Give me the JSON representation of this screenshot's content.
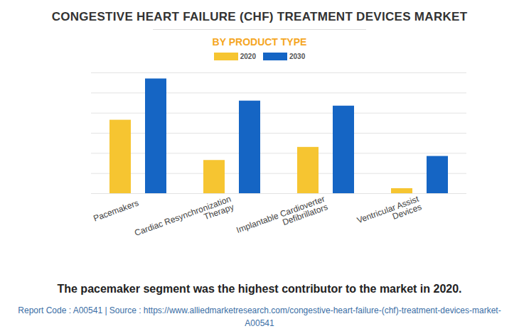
{
  "chart_data": {
    "type": "bar",
    "title": "CONGESTIVE HEART FAILURE (CHF) TREATMENT DEVICES MARKET",
    "subtitle": "BY PRODUCT TYPE",
    "caption": "The pacemaker segment was the highest contributor to the market in 2020.",
    "footer": "Report Code : A00541  |  Source : https://www.alliedmarketresearch.com/congestive-heart-failure-(chf)-treatment-devices-market-A00541",
    "categories": [
      "Pacemakers",
      "Cardiac Resynchronization\nTherapy",
      "Implantable Cardioverter\nDefibrillators",
      "Ventricular Assist\nDevices"
    ],
    "series": [
      {
        "name": "2020",
        "color": "#f6c531",
        "values": [
          3.65,
          1.65,
          2.3,
          0.25
        ]
      },
      {
        "name": "2030",
        "color": "#1565c4",
        "values": [
          5.7,
          4.6,
          4.35,
          1.85
        ]
      }
    ],
    "ylim": [
      0,
      6
    ],
    "yticks": [
      0,
      1,
      2,
      3,
      4,
      5,
      6
    ],
    "grid": true,
    "tick_labels": "x",
    "legend": "top"
  }
}
